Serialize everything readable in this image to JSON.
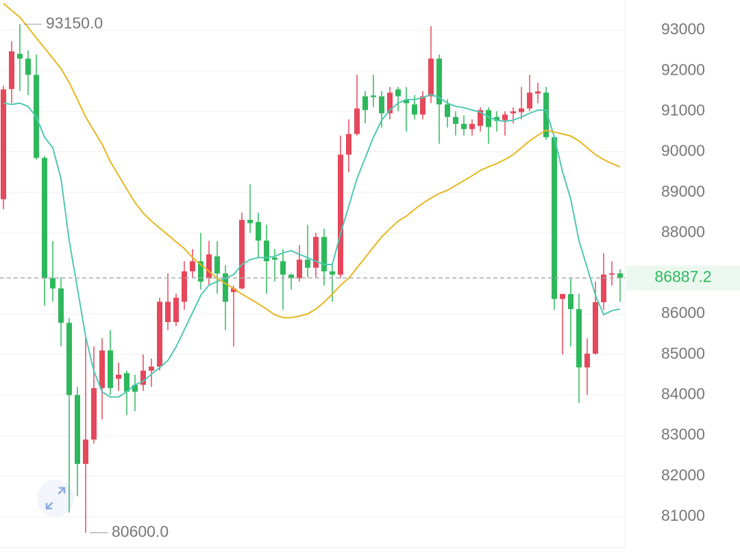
{
  "chart_data": {
    "type": "candlestick",
    "open": [
      88830,
      91550,
      92420,
      92300,
      91900,
      89850,
      86880,
      86630,
      85780,
      84000,
      82300,
      82900,
      84170,
      85100,
      84400,
      84540,
      84250,
      84250,
      84600,
      84700,
      85800,
      85800,
      86300,
      87050,
      87300,
      86880,
      87420,
      87000,
      86540,
      86630,
      88320,
      88270,
      87810,
      87390,
      87300,
      86970,
      86880,
      87340,
      87140,
      87900,
      87050,
      86970,
      89930,
      90440,
      91370,
      91390,
      91370,
      90950,
      91540,
      91290,
      91170,
      90920,
      91370,
      92300,
      91170,
      90860,
      90690,
      90560,
      90640,
      91030,
      90860,
      90780,
      90950,
      90980,
      91070,
      91440,
      91460,
      90360,
      86370,
      86490,
      86120,
      84680,
      85020,
      86290,
      86970,
      87000
    ],
    "high": [
      91630,
      92730,
      93150,
      92500,
      92400,
      89900,
      87800,
      86900,
      85900,
      84200,
      85400,
      85200,
      85400,
      85600,
      84800,
      84600,
      84500,
      85000,
      84900,
      86400,
      87000,
      86500,
      87300,
      87600,
      88000,
      87800,
      87800,
      87200,
      86700,
      88500,
      89200,
      88500,
      88200,
      87600,
      87600,
      87000,
      87700,
      88200,
      88000,
      88100,
      87200,
      90400,
      90800,
      91900,
      91500,
      91900,
      91500,
      91600,
      91600,
      91600,
      91400,
      91500,
      93100,
      92400,
      91300,
      91000,
      90900,
      90800,
      91100,
      91100,
      91000,
      91000,
      91100,
      91600,
      91900,
      91700,
      91600,
      90400,
      86500,
      86900,
      86500,
      85400,
      86800,
      87500,
      87300,
      87100
    ],
    "low": [
      88580,
      91200,
      91500,
      91400,
      89800,
      86200,
      86300,
      85200,
      81100,
      81500,
      80600,
      82800,
      83400,
      84000,
      84100,
      83500,
      83600,
      84100,
      84200,
      84600,
      85600,
      85700,
      86100,
      86900,
      86600,
      86700,
      86500,
      85600,
      85200,
      86600,
      88000,
      87400,
      86500,
      86800,
      86100,
      86600,
      86800,
      86900,
      86900,
      86700,
      86300,
      86880,
      89500,
      90400,
      90700,
      91100,
      90600,
      90800,
      91000,
      90500,
      90800,
      90800,
      91200,
      90200,
      90600,
      90400,
      90400,
      90400,
      90500,
      90200,
      90500,
      90400,
      90700,
      90800,
      91000,
      91200,
      90300,
      86100,
      85000,
      85200,
      83800,
      84000,
      85000,
      86100,
      86700,
      86300
    ],
    "close": [
      91540,
      92480,
      92300,
      91900,
      89850,
      86880,
      86630,
      85780,
      84000,
      82300,
      82900,
      84170,
      85100,
      84170,
      84500,
      84080,
      84080,
      84600,
      84700,
      86300,
      86300,
      86400,
      87050,
      87300,
      86800,
      87470,
      87000,
      86300,
      86630,
      88320,
      88240,
      87810,
      87300,
      87340,
      86970,
      86880,
      87340,
      87140,
      87900,
      87050,
      86970,
      89930,
      90440,
      91070,
      91030,
      91350,
      90950,
      91460,
      91370,
      91200,
      90920,
      91370,
      92300,
      91170,
      90860,
      90690,
      90560,
      90690,
      91030,
      90610,
      90760,
      90920,
      91000,
      91070,
      91460,
      91490,
      90360,
      86370,
      86490,
      86120,
      84680,
      85020,
      86290,
      86970,
      87000,
      86887.2
    ],
    "up_color": "#e5475b",
    "down_color": "#2eb85c",
    "series": [
      {
        "color": "#4dc8b2",
        "values": [
          91200,
          91170,
          91200,
          91120,
          90860,
          90360,
          90100,
          89340,
          87810,
          86630,
          85440,
          84590,
          84080,
          83950,
          83950,
          84080,
          84250,
          84340,
          84510,
          84680,
          84850,
          85190,
          85610,
          86030,
          86460,
          86710,
          86800,
          86880,
          86970,
          87220,
          87340,
          87390,
          87390,
          87420,
          87510,
          87560,
          87470,
          87390,
          87300,
          87220,
          87220,
          87980,
          88660,
          89340,
          89850,
          90360,
          90780,
          91030,
          91200,
          91290,
          91290,
          91340,
          91410,
          91340,
          91200,
          91120,
          91090,
          91030,
          90980,
          90860,
          90780,
          90750,
          90780,
          90860,
          90950,
          91030,
          91030,
          90360,
          89510,
          88830,
          87810,
          87140,
          86460,
          85980,
          86080,
          86120
        ]
      },
      {
        "color": "#e8b51e",
        "values": [
          93660,
          93490,
          93320,
          93070,
          92810,
          92560,
          92310,
          92050,
          91710,
          91290,
          90860,
          90520,
          90190,
          89760,
          89420,
          89080,
          88750,
          88490,
          88290,
          88120,
          87950,
          87780,
          87610,
          87390,
          87220,
          87050,
          86880,
          86750,
          86630,
          86490,
          86370,
          86250,
          86120,
          85980,
          85910,
          85910,
          85950,
          86000,
          86120,
          86290,
          86490,
          86710,
          86880,
          87140,
          87390,
          87650,
          87900,
          88100,
          88290,
          88410,
          88580,
          88730,
          88860,
          88970,
          89050,
          89170,
          89290,
          89410,
          89540,
          89630,
          89710,
          89810,
          89930,
          90100,
          90270,
          90410,
          90530,
          90490,
          90440,
          90390,
          90270,
          90100,
          89930,
          89810,
          89710,
          89630
        ]
      }
    ],
    "ylim": [
      80186,
      93746
    ],
    "yticks": [
      81000,
      82000,
      83000,
      84000,
      85000,
      86000,
      87000,
      88000,
      89000,
      90000,
      91000,
      92000,
      93000
    ],
    "grid": true,
    "annotations": [
      {
        "value": 93150,
        "label": "93150.0"
      },
      {
        "value": 80600,
        "label": "80600.0"
      }
    ],
    "last_price": 86887.2,
    "last_price_color": "#2eb85c"
  }
}
